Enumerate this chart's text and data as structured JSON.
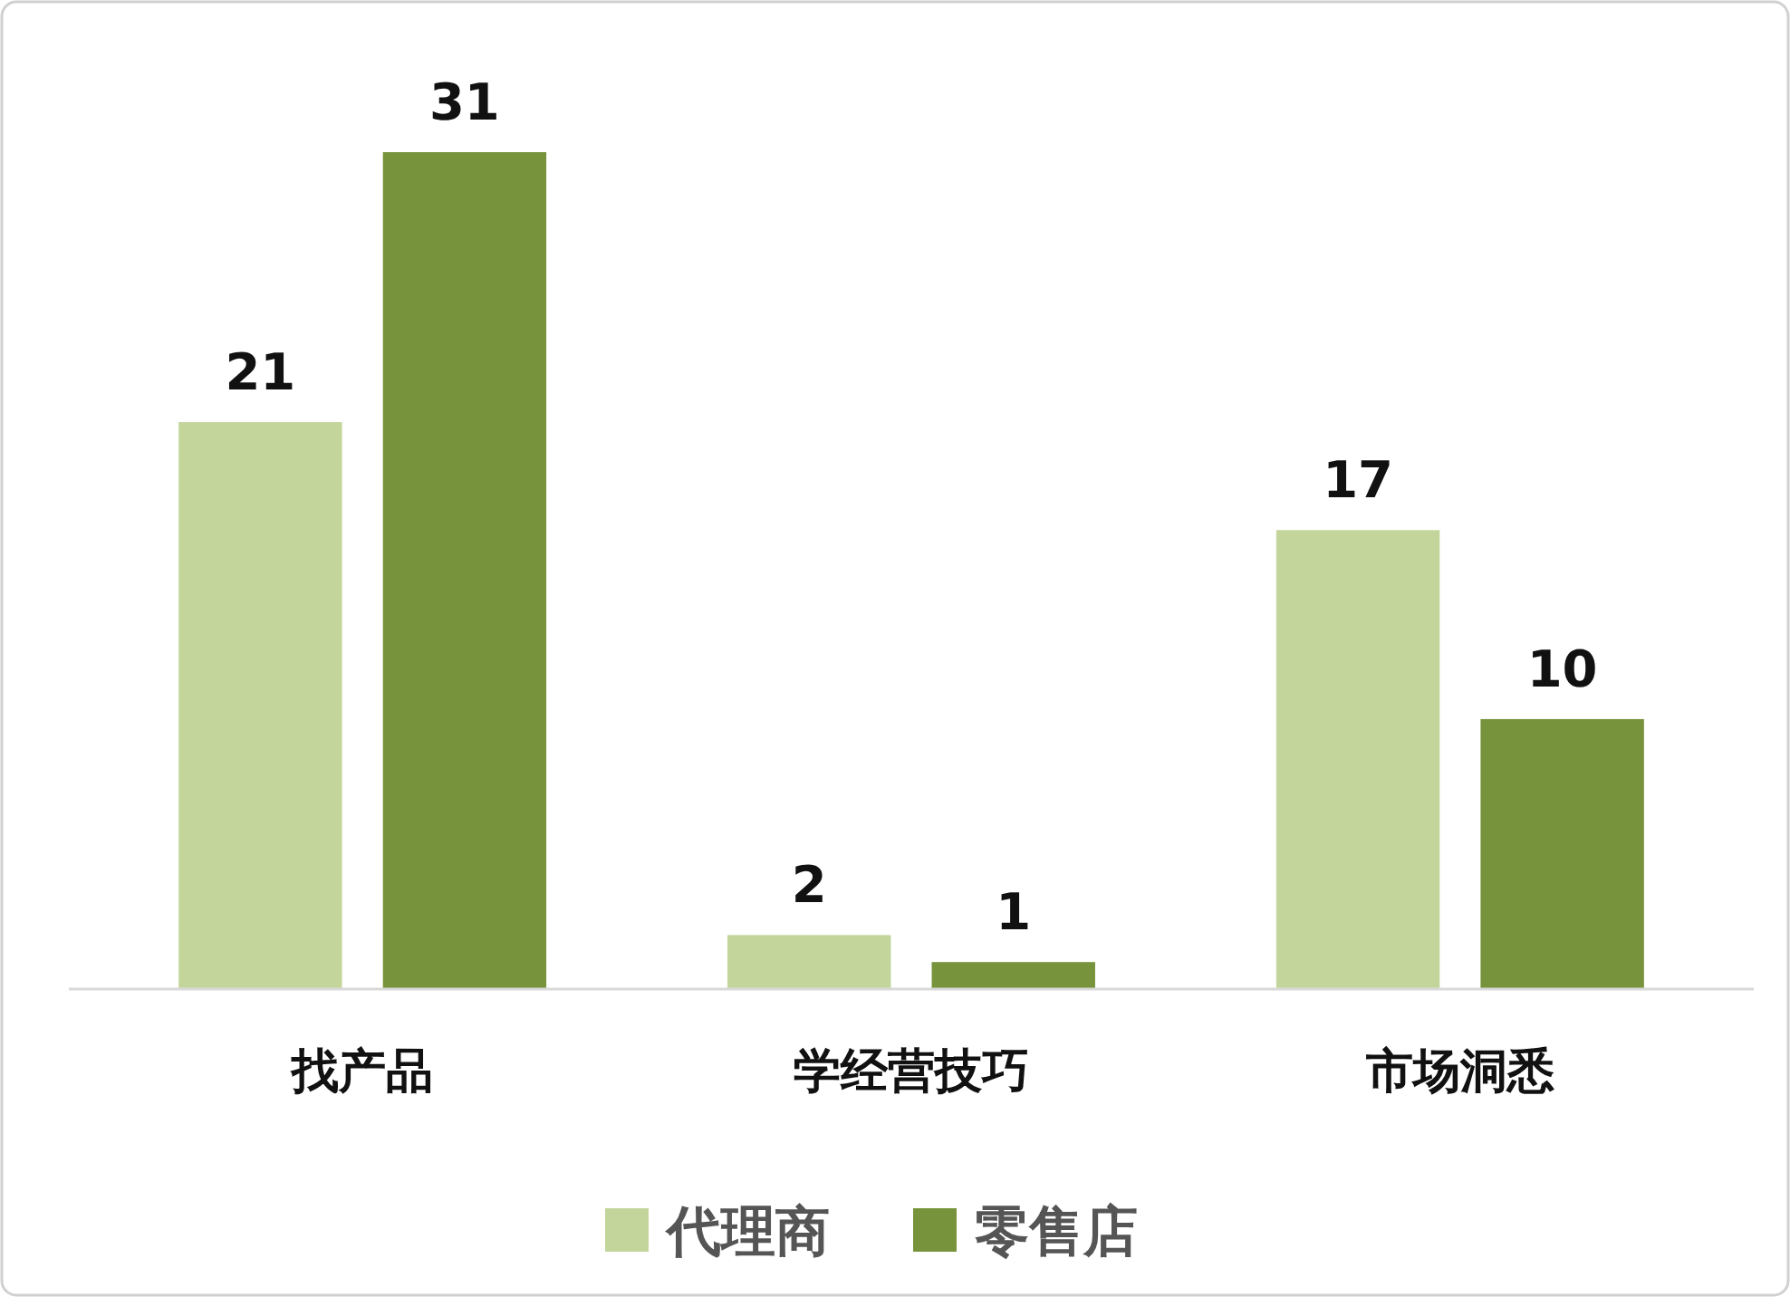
{
  "chart_data": {
    "type": "bar",
    "categories": [
      "找产品",
      "学经营技巧",
      "市场洞悉"
    ],
    "series": [
      {
        "name": "代理商",
        "color": "#c4d59b",
        "values": [
          21,
          2,
          17
        ]
      },
      {
        "name": "零售店",
        "color": "#77933c",
        "values": [
          31,
          1,
          10
        ]
      }
    ],
    "tick_labels": "x",
    "data_labels": true,
    "legend": "bottom",
    "grid": false
  }
}
